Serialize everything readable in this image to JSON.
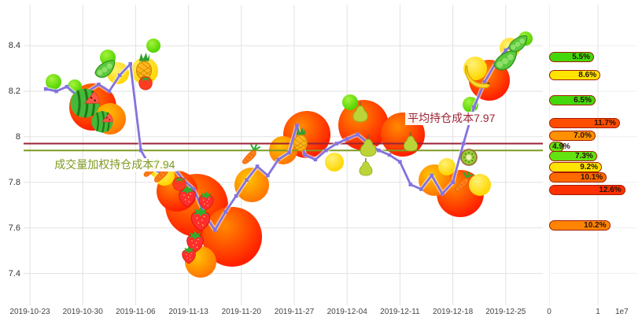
{
  "chart_data": [
    {
      "type": "line",
      "x_tick_labels": [
        "2019-10-23",
        "2019-10-30",
        "2019-11-06",
        "2019-11-13",
        "2019-11-20",
        "2019-11-27",
        "2019-12-04",
        "2019-12-11",
        "2019-12-18",
        "2019-12-25"
      ],
      "y_tick_values": [
        8.4,
        8.2,
        8.0,
        7.8,
        7.6,
        7.4
      ],
      "y_tick_labels": [
        "8.4",
        "8.2",
        "8",
        "7.8",
        "7.6",
        "7.4"
      ],
      "ylim": [
        7.26,
        8.58
      ],
      "grid": true,
      "series": [
        {
          "name": "price",
          "color": "#8273e0",
          "points": [
            [
              0.3,
              8.21
            ],
            [
              0.5,
              8.2
            ],
            [
              0.7,
              8.22
            ],
            [
              0.9,
              8.18
            ],
            [
              1.1,
              8.2
            ],
            [
              1.3,
              8.23
            ],
            [
              1.5,
              8.2
            ],
            [
              1.7,
              8.27
            ],
            [
              1.9,
              8.32
            ],
            [
              2.1,
              7.94
            ],
            [
              2.3,
              7.86
            ],
            [
              2.5,
              7.84
            ],
            [
              2.7,
              7.87
            ],
            [
              2.9,
              7.81
            ],
            [
              3.1,
              7.77
            ],
            [
              3.3,
              7.66
            ],
            [
              3.5,
              7.59
            ],
            [
              3.7,
              7.67
            ],
            [
              3.9,
              7.74
            ],
            [
              4.1,
              7.81
            ],
            [
              4.3,
              7.87
            ],
            [
              4.5,
              7.83
            ],
            [
              4.7,
              7.9
            ],
            [
              4.9,
              7.93
            ],
            [
              5.05,
              8.05
            ],
            [
              5.2,
              7.92
            ],
            [
              5.4,
              7.9
            ],
            [
              5.6,
              7.94
            ],
            [
              5.8,
              7.97
            ],
            [
              6.0,
              7.99
            ],
            [
              6.2,
              8.01
            ],
            [
              6.4,
              7.97
            ],
            [
              6.6,
              7.94
            ],
            [
              6.8,
              7.92
            ],
            [
              7.0,
              7.89
            ],
            [
              7.2,
              7.79
            ],
            [
              7.4,
              7.77
            ],
            [
              7.6,
              7.83
            ],
            [
              7.8,
              7.75
            ],
            [
              8.0,
              7.8
            ],
            [
              8.2,
              7.97
            ],
            [
              8.4,
              8.13
            ],
            [
              8.6,
              8.24
            ],
            [
              8.8,
              8.32
            ],
            [
              9.0,
              8.38
            ],
            [
              9.15,
              8.41
            ]
          ]
        }
      ],
      "hlines": [
        {
          "label": "平均持仓成本7.97",
          "value": 7.97,
          "color": "#9b2335",
          "label_x": 7.1,
          "label_price": 8.08
        },
        {
          "label": "成交量加权持仓成本7.94",
          "value": 7.94,
          "color": "#7f9a23",
          "label_x": 0.42,
          "label_price": 7.875
        }
      ],
      "decoration_palette": {
        "red": [
          "#ff8a00",
          "#ff2000"
        ],
        "orange": [
          "#ffc400",
          "#ff7800"
        ],
        "yellow": [
          "#fff176",
          "#ffd600"
        ],
        "green": [
          "#a5f23c",
          "#52d400"
        ]
      },
      "decorations": [
        {
          "type": "blob",
          "color": "red",
          "x": 1.19,
          "p": 8.13,
          "r": 30
        },
        {
          "type": "blob",
          "color": "orange",
          "x": 1.52,
          "p": 8.08,
          "r": 20
        },
        {
          "type": "blob",
          "color": "yellow",
          "x": 1.67,
          "p": 8.28,
          "r": 14
        },
        {
          "type": "blob",
          "color": "green",
          "x": 0.45,
          "p": 8.24,
          "r": 10
        },
        {
          "type": "blob",
          "color": "green",
          "x": 0.85,
          "p": 8.22,
          "r": 9
        },
        {
          "type": "blob",
          "color": "green",
          "x": 1.47,
          "p": 8.35,
          "r": 10
        },
        {
          "type": "blob",
          "color": "yellow",
          "x": 2.17,
          "p": 8.29,
          "r": 17
        },
        {
          "type": "blob",
          "color": "green",
          "x": 2.34,
          "p": 8.4,
          "r": 9
        },
        {
          "type": "blob",
          "color": "yellow",
          "x": 2.42,
          "p": 7.86,
          "r": 12
        },
        {
          "type": "blob",
          "color": "red",
          "x": 3.15,
          "p": 7.7,
          "r": 40
        },
        {
          "type": "blob",
          "color": "red",
          "x": 3.82,
          "p": 7.56,
          "r": 38
        },
        {
          "type": "blob",
          "color": "red",
          "x": 2.78,
          "p": 7.76,
          "r": 26
        },
        {
          "type": "blob",
          "color": "orange",
          "x": 4.2,
          "p": 7.79,
          "r": 22
        },
        {
          "type": "blob",
          "color": "orange",
          "x": 3.23,
          "p": 7.45,
          "r": 20
        },
        {
          "type": "blob",
          "color": "yellow",
          "x": 2.55,
          "p": 7.83,
          "r": 13
        },
        {
          "type": "blob",
          "color": "red",
          "x": 5.24,
          "p": 8.01,
          "r": 30
        },
        {
          "type": "blob",
          "color": "red",
          "x": 6.31,
          "p": 8.05,
          "r": 32
        },
        {
          "type": "blob",
          "color": "red",
          "x": 7.05,
          "p": 8.01,
          "r": 28
        },
        {
          "type": "blob",
          "color": "orange",
          "x": 4.79,
          "p": 7.94,
          "r": 18
        },
        {
          "type": "blob",
          "color": "yellow",
          "x": 5.76,
          "p": 7.89,
          "r": 12
        },
        {
          "type": "blob",
          "color": "green",
          "x": 6.06,
          "p": 8.15,
          "r": 10
        },
        {
          "type": "blob",
          "color": "red",
          "x": 8.14,
          "p": 7.75,
          "r": 30
        },
        {
          "type": "blob",
          "color": "orange",
          "x": 7.65,
          "p": 7.81,
          "r": 20
        },
        {
          "type": "blob",
          "color": "yellow",
          "x": 7.89,
          "p": 7.87,
          "r": 11
        },
        {
          "type": "blob",
          "color": "yellow",
          "x": 8.51,
          "p": 7.79,
          "r": 14
        },
        {
          "type": "blob",
          "color": "red",
          "x": 8.69,
          "p": 8.25,
          "r": 26
        },
        {
          "type": "blob",
          "color": "yellow",
          "x": 8.42,
          "p": 8.3,
          "r": 15
        },
        {
          "type": "blob",
          "color": "yellow",
          "x": 9.08,
          "p": 8.39,
          "r": 13
        },
        {
          "type": "blob",
          "color": "green",
          "x": 8.33,
          "p": 8.14,
          "r": 10
        },
        {
          "type": "blob",
          "color": "green",
          "x": 9.37,
          "p": 8.43,
          "r": 9
        },
        {
          "type": "watermelon",
          "x": 1.04,
          "p": 8.15,
          "s": 46
        },
        {
          "type": "watermelon",
          "x": 1.37,
          "p": 8.07,
          "s": 34
        },
        {
          "type": "peas",
          "x": 1.41,
          "p": 8.3,
          "s": 30
        },
        {
          "type": "pineapple",
          "x": 2.16,
          "p": 8.31,
          "s": 36
        },
        {
          "type": "tomato",
          "x": 2.18,
          "p": 8.24,
          "s": 24
        },
        {
          "type": "carrot",
          "x": 2.29,
          "p": 7.86,
          "s": 26
        },
        {
          "type": "strawberry",
          "x": 2.98,
          "p": 7.74,
          "s": 32
        },
        {
          "type": "strawberry",
          "x": 3.23,
          "p": 7.64,
          "s": 36
        },
        {
          "type": "strawberry",
          "x": 3.13,
          "p": 7.54,
          "s": 32
        },
        {
          "type": "strawberry",
          "x": 3.33,
          "p": 7.72,
          "s": 28
        },
        {
          "type": "strawberry",
          "x": 3.01,
          "p": 7.48,
          "s": 26
        },
        {
          "type": "tomato",
          "x": 2.83,
          "p": 7.8,
          "s": 24
        },
        {
          "type": "carrot",
          "x": 2.5,
          "p": 7.84,
          "s": 28
        },
        {
          "type": "carrot",
          "x": 4.17,
          "p": 7.92,
          "s": 28
        },
        {
          "type": "pineapple",
          "x": 5.12,
          "p": 7.99,
          "s": 32
        },
        {
          "type": "pear",
          "x": 6.25,
          "p": 8.11,
          "s": 30
        },
        {
          "type": "pear",
          "x": 6.4,
          "p": 7.96,
          "s": 32
        },
        {
          "type": "pear",
          "x": 7.2,
          "p": 7.98,
          "s": 28
        },
        {
          "type": "pear",
          "x": 6.35,
          "p": 7.87,
          "s": 26
        },
        {
          "type": "kiwi",
          "x": 8.3,
          "p": 7.91,
          "s": 28
        },
        {
          "type": "carrot",
          "x": 8.18,
          "p": 7.8,
          "s": 28
        },
        {
          "type": "banana",
          "x": 8.48,
          "p": 8.27,
          "s": 38
        },
        {
          "type": "peas",
          "x": 8.99,
          "p": 8.34,
          "s": 34
        },
        {
          "type": "peas",
          "x": 9.23,
          "p": 8.41,
          "s": 28
        }
      ]
    },
    {
      "type": "bar",
      "orientation": "horizontal",
      "x_tick_labels": [
        "0",
        "1"
      ],
      "x_scale_label": "1e7",
      "xlim": [
        0,
        1.74
      ],
      "bars": [
        {
          "label": "5.5%",
          "price": 8.35,
          "value": 0.92,
          "color": "#44d80c"
        },
        {
          "label": "8.6%",
          "price": 8.27,
          "value": 1.05,
          "color": "#ffe400"
        },
        {
          "label": "6.5%",
          "price": 8.16,
          "value": 0.95,
          "color": "#44d80c"
        },
        {
          "label": "11.7%",
          "price": 8.06,
          "value": 1.45,
          "color": "#ff4d00"
        },
        {
          "label": "7.0%",
          "price": 8.005,
          "value": 0.95,
          "color": "#ff9000"
        },
        {
          "label": "4.9%",
          "price": 7.955,
          "value": 0.3,
          "color": "#63e312"
        },
        {
          "label": "7.3%",
          "price": 7.915,
          "value": 0.98,
          "color": "#63e312"
        },
        {
          "label": "9.2%",
          "price": 7.865,
          "value": 1.08,
          "color": "#ffe400"
        },
        {
          "label": "10.1%",
          "price": 7.82,
          "value": 1.18,
          "color": "#ff6a00"
        },
        {
          "label": "12.6%",
          "price": 7.765,
          "value": 1.56,
          "color": "#ff3000"
        },
        {
          "label": "10.2%",
          "price": 7.61,
          "value": 1.25,
          "color": "#ff8400"
        }
      ]
    }
  ]
}
